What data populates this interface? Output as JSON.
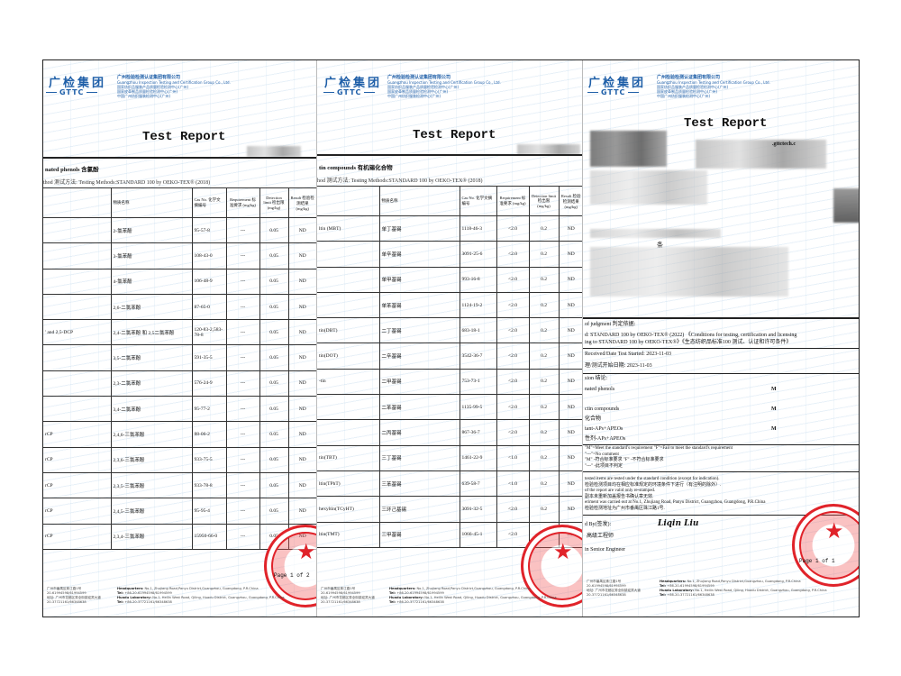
{
  "header": {
    "logo_cn": "广检集团",
    "logo_en": "GTTC",
    "company": "广州检验检测认证集团有限公司",
    "company_sub": [
      "Guangzhou Inspection Testing and Certification Group Co., Ltd.",
      "国家纺织品服装产品质量检验检测中心(广州)",
      "国家皮革制品质量检验检测中心(广州)",
      "中国广州纺织服装检测中心(广州)"
    ],
    "title": "Test Report"
  },
  "page1": {
    "section": "nated phenols 含氯酚",
    "method": "thod 测试方法:  Testing Methods:STANDARD 100 by OEKO-TEX® (2018)",
    "columns": [
      "",
      "物质名称",
      "Cas No. 化学文摘编号",
      "Requirement 标准要求 (mg/kg)",
      "Detection limit 检出限 (mg/kg)",
      "Result 检验检测结果 (mg/kg)"
    ],
    "rows": [
      [
        "",
        "2-氯苯酚",
        "95-57-8",
        "---",
        "0.05",
        "ND"
      ],
      [
        "",
        "3-氯苯酚",
        "108-43-0",
        "---",
        "0.05",
        "ND"
      ],
      [
        "",
        "4-氯苯酚",
        "106-48-9",
        "---",
        "0.05",
        "ND"
      ],
      [
        "",
        "2,6-二氯苯酚",
        "87-65-0",
        "---",
        "0.05",
        "ND"
      ],
      [
        "' and 2,5-DCP",
        "2,4-二氯苯酚 和 2,5二氯苯酚",
        "120-83-2,583-78-8",
        "---",
        "0.05",
        "ND"
      ],
      [
        "",
        "3,5-二氯苯酚",
        "591-35-5",
        "---",
        "0.05",
        "ND"
      ],
      [
        "",
        "2,3-二氯苯酚",
        "576-24-9",
        "---",
        "0.05",
        "ND"
      ],
      [
        "",
        "3,4-二氯苯酚",
        "95-77-2",
        "---",
        "0.05",
        "ND"
      ],
      [
        "rCP",
        "2,4,6-三氯苯酚",
        "88-06-2",
        "---",
        "0.05",
        "ND"
      ],
      [
        "rCP",
        "2,3,6-三氯苯酚",
        "933-75-5",
        "---",
        "0.05",
        "ND"
      ],
      [
        "rCP",
        "2,3,5-三氯苯酚",
        "933-78-8",
        "---",
        "0.05",
        "ND"
      ],
      [
        "rCP",
        "2,4,5-三氯苯酚",
        "95-95-4",
        "---",
        "0.05",
        "ND"
      ],
      [
        "rCP",
        "2,3,4-三氯苯酚",
        "15950-66-0",
        "---",
        "0.05",
        "ND"
      ]
    ],
    "page_label": "Page 1 of 2"
  },
  "page2": {
    "section": "tin compounds 有机锡化合物",
    "method": "hod 测试方法:  Testing Methods:STANDARD 100 by OEKO-TEX® (2018)",
    "columns": [
      "",
      "物质名称",
      "Cas No. 化学文摘编号",
      "Requirement 标准要求 (mg/kg)",
      "Detection limit 检出限 (mg/kg)",
      "Result 检验检测结果 (mg/kg)"
    ],
    "rows": [
      [
        "ltin (MBT)",
        "单丁基锡",
        "1118-46-3",
        "<2.0",
        "0.2",
        "ND"
      ],
      [
        "",
        "单辛基锡",
        "3091-25-6",
        "<2.0",
        "0.2",
        "ND"
      ],
      [
        "",
        "单甲基锡",
        "993-16-8",
        "<2.0",
        "0.2",
        "ND"
      ],
      [
        "",
        "单苯基锡",
        "1124-19-2",
        "<2.0",
        "0.2",
        "ND"
      ],
      [
        "tin(DBT)",
        "二丁基锡",
        "683-18-1",
        "<2.0",
        "0.2",
        "ND"
      ],
      [
        "tin(DOT)",
        "二辛基锡",
        "3542-36-7",
        "<2.0",
        "0.2",
        "ND"
      ],
      [
        "-tin",
        "二甲基锡",
        "753-73-1",
        "<2.0",
        "0.2",
        "ND"
      ],
      [
        "",
        "二苯基锡",
        "1135-99-5",
        "<2.0",
        "0.2",
        "ND"
      ],
      [
        "",
        "二丙基锡",
        "867-36-7",
        "<2.0",
        "0.2",
        "ND"
      ],
      [
        "tin(TBT)",
        "三丁基锡",
        "1461-22-9",
        "<1.0",
        "0.2",
        "ND"
      ],
      [
        "ltin(TPhT)",
        "三苯基锡",
        "639-58-7",
        "<1.0",
        "0.2",
        "ND"
      ],
      [
        "hexyltin(TCyHT)",
        "三环己基锡",
        "3091-32-5",
        "<2.0",
        "0.2",
        "ND"
      ],
      [
        "ltin(TMT)",
        "三甲基锡",
        "1066-45-1",
        "<2.0",
        "0.2",
        "ND"
      ]
    ]
  },
  "page3": {
    "website_fragment": ".gttctech.c",
    "fragment_1": "条",
    "lines": [
      "of judgment 判定依据:",
      "d: STANDARD 100 by OEKO-TEX® (2022)  《Conditions for testing, certification and licensing",
      "ing to STANDARD 100 by OEKO-TEX®》《生态纺织品标准100 测试、认证和许可条件》",
      "Received/Date Test Started: 2023-11-03",
      "理/测试开始日期: 2023-11-03",
      "sion 结论:"
    ],
    "conclusions": [
      {
        "label": "nated phenols",
        "label2": "",
        "result": "M"
      },
      {
        "label": "ctin compounds",
        "label2": "化合物",
        "result": "M"
      },
      {
        "label": "tant-APs+APEOs",
        "label2": "性剂-APs+APEOs",
        "result": "M"
      }
    ],
    "legend": [
      "\"M\"=Meet the standard's requirement   \"F\"=Fail to meet the standard's requirement",
      "\"---\"=No comment",
      "\"M\" -符合标准要求   \"F\" -不符合标准要求",
      "\"---\" -此项目不判定"
    ],
    "notes": [
      "tested items are tested under the standard condition (except for indication).",
      "检验检测项目均在相应标准规定的环境条件下进行（有注明的除外）.",
      "of the report are valid only re-stamped.",
      "副本未重新加盖报告书确认章无效.",
      "eriment was carried out at No.1, Zhujiang Road, Panyu District, Guangzhou, Guangdong, P.R.China",
      "检验检测地址为广州市番禺区珠江路1号."
    ],
    "issued_by": "d By(签发):",
    "signature": "Liqin Liu",
    "title_cn": "高级工程师",
    "title_en": "in Senior Engineer",
    "page_label": "Page 1 of 1"
  },
  "footer": {
    "left": [
      "广州市番禺区珠江路1号",
      "20-61994598/61994599",
      "地址: 广州市花都区秀全街镇迎宾大道",
      "20-37721161/66348638"
    ],
    "hq_label": "Headquarters:",
    "hq": "No.1, Zhujiang Road,Panyu District,Guangzhou, Guangdong, P.R.China",
    "tel_label": "Tel:",
    "hq_tel": "+86-20-61994598/61994599",
    "lab_label": "Huadu Laboratory:",
    "lab": "No.1, Heilin West Road, Qiling, Huadu District, Guangzhou, Guangdong, P.R.China",
    "lab_tel": "+86-20-37721161/66348638"
  },
  "colors": {
    "brand_blue": "#1f5fa8",
    "stamp_red": "#e0232a"
  }
}
